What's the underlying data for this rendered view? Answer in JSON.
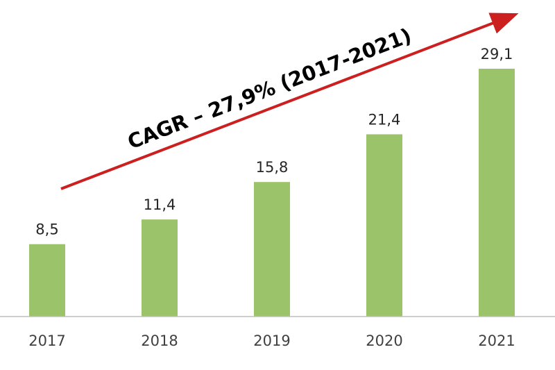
{
  "chart_data": {
    "type": "bar",
    "categories": [
      "2017",
      "2018",
      "2019",
      "2020",
      "2021"
    ],
    "values": [
      8.5,
      11.4,
      15.8,
      21.4,
      29.1
    ],
    "value_labels": [
      "8,5",
      "11,4",
      "15,8",
      "21,4",
      "29,1"
    ],
    "title": "",
    "xlabel": "",
    "ylabel": "",
    "ylim": [
      0,
      30
    ],
    "grid": false,
    "legend": "none",
    "annotation": {
      "text": "CAGR – 27,9% (2017-2021)",
      "style": "arrow rising left to right"
    },
    "colors": {
      "bar": "#9bc46a",
      "arrow": "#cc1f1f",
      "axis": "#bfbfbf"
    }
  }
}
